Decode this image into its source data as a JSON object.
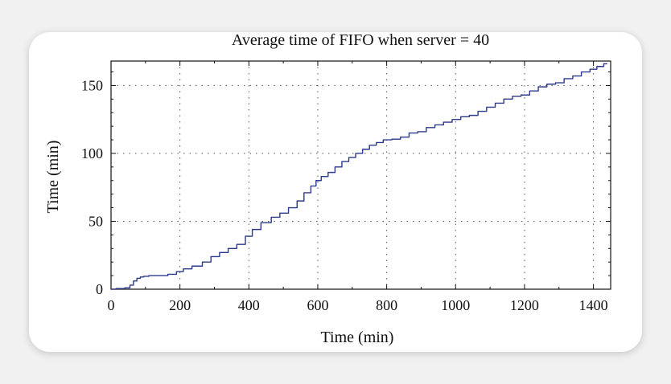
{
  "chart_data": {
    "type": "line",
    "title": "Average time of FIFO when server = 40",
    "xlabel": "Time (min)",
    "ylabel": "Time (min)",
    "xlim": [
      0,
      1450
    ],
    "ylim": [
      0,
      168
    ],
    "xticks": [
      0,
      200,
      400,
      600,
      800,
      1000,
      1200,
      1400
    ],
    "yticks": [
      0,
      50,
      100,
      150
    ],
    "grid": true,
    "legend": "none",
    "series": [
      {
        "color": "#2b3a8a",
        "x": [
          0,
          30,
          50,
          60,
          70,
          80,
          90,
          100,
          120,
          150,
          180,
          200,
          220,
          250,
          280,
          300,
          330,
          350,
          380,
          400,
          420,
          450,
          480,
          500,
          530,
          550,
          570,
          590,
          600,
          620,
          640,
          660,
          680,
          700,
          720,
          740,
          760,
          780,
          800,
          830,
          850,
          880,
          900,
          930,
          950,
          980,
          1000,
          1030,
          1050,
          1080,
          1100,
          1130,
          1150,
          1180,
          1200,
          1230,
          1250,
          1280,
          1300,
          1330,
          1350,
          1380,
          1400,
          1420,
          1440
        ],
        "y": [
          0,
          0.5,
          1,
          3,
          6,
          8,
          9,
          9.5,
          10,
          10,
          11,
          13,
          15,
          17,
          20,
          24,
          27,
          30,
          33,
          39,
          44,
          49,
          53,
          56,
          60,
          65,
          71,
          76,
          80,
          83,
          86,
          90,
          94,
          97,
          100,
          103,
          106,
          108,
          110,
          110.5,
          112,
          115,
          116,
          119,
          121,
          123,
          125,
          127,
          128,
          131,
          134,
          137,
          140,
          142,
          143,
          146,
          149,
          151,
          152,
          155,
          157,
          160,
          162,
          164,
          166
        ]
      }
    ]
  }
}
